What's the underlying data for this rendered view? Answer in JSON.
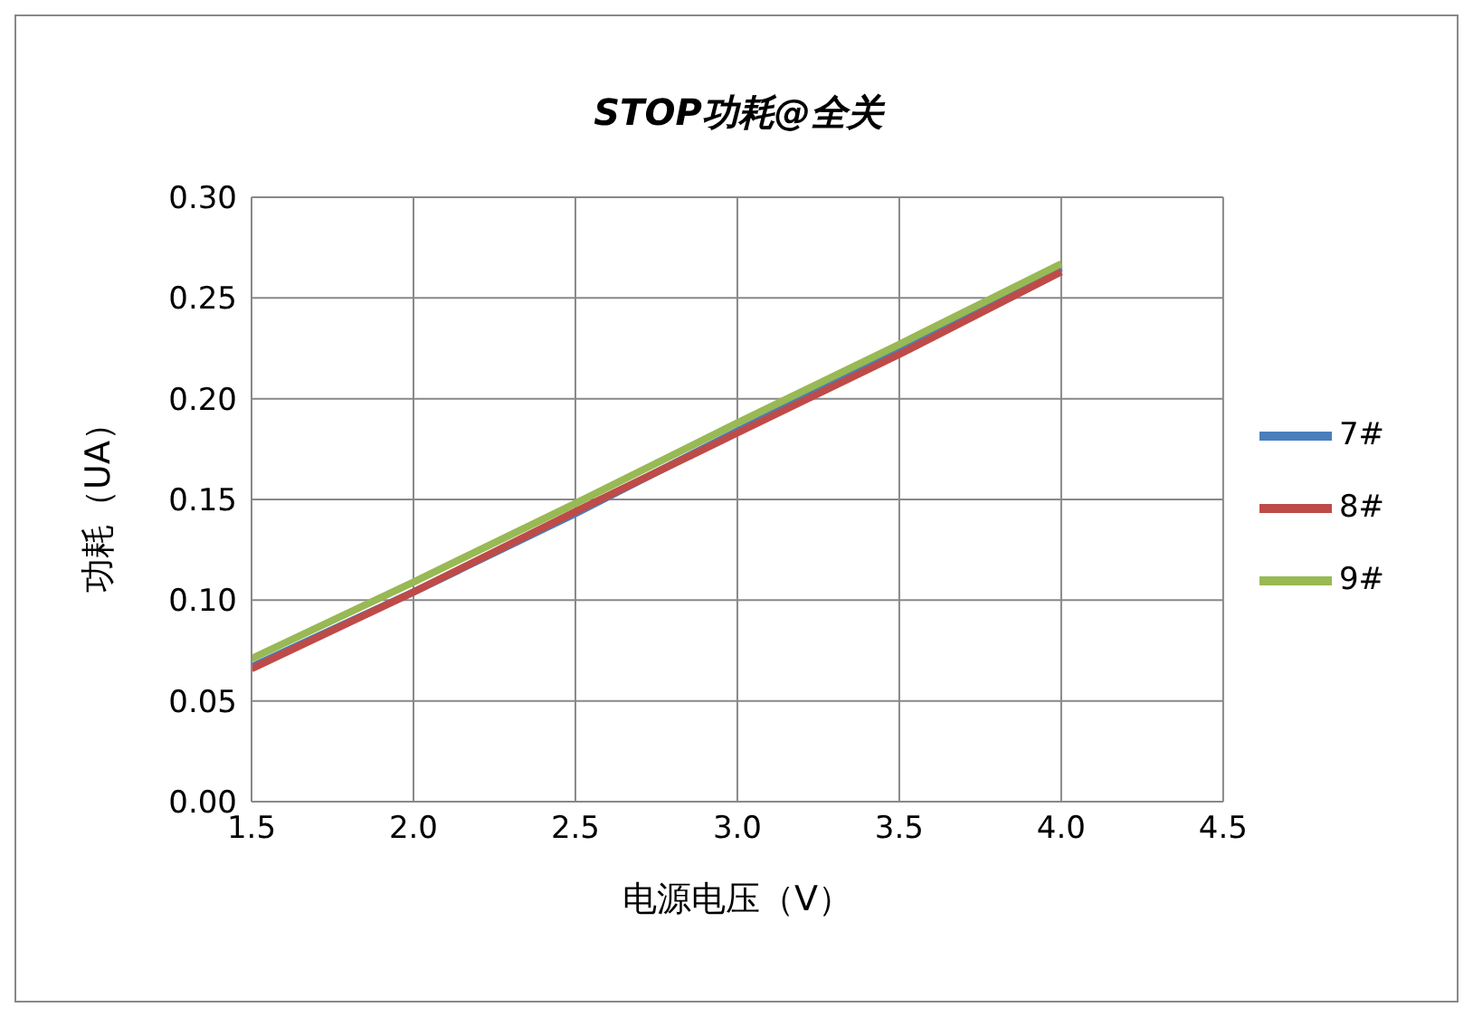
{
  "chart_data": {
    "type": "line",
    "title": "STOP功耗@全关",
    "xlabel": "电源电压（V）",
    "ylabel": "功耗（UA）",
    "xlim": [
      1.5,
      4.5
    ],
    "xticks": [
      {
        "value": 1.5,
        "label": "1.5"
      },
      {
        "value": 2,
        "label": "2.0"
      },
      {
        "value": 2.5,
        "label": "2.5"
      },
      {
        "value": 3,
        "label": "3.0"
      },
      {
        "value": 3.5,
        "label": "3.5"
      },
      {
        "value": 4,
        "label": "4.0"
      },
      {
        "value": 4.5,
        "label": "4.5"
      }
    ],
    "ylim": [
      0,
      0.3
    ],
    "yticks": [
      {
        "value": 0,
        "label": "0.00"
      },
      {
        "value": 0.05,
        "label": "0.05"
      },
      {
        "value": 0.1,
        "label": "0.10"
      },
      {
        "value": 0.15,
        "label": "0.15"
      },
      {
        "value": 0.2,
        "label": "0.20"
      },
      {
        "value": 0.25,
        "label": "0.25"
      },
      {
        "value": 0.3,
        "label": "0.30"
      }
    ],
    "x": [
      1.5,
      2.0,
      2.5,
      3.0,
      3.5,
      4.0
    ],
    "series": [
      {
        "name": "7#",
        "color": "#4a7ebb",
        "values": [
          0.067,
          0.104,
          0.143,
          0.184,
          0.224,
          0.265
        ]
      },
      {
        "name": "8#",
        "color": "#be4b48",
        "values": [
          0.066,
          0.104,
          0.144,
          0.183,
          0.222,
          0.263
        ]
      },
      {
        "name": "9#",
        "color": "#98b954",
        "values": [
          0.071,
          0.109,
          0.148,
          0.188,
          0.227,
          0.267
        ]
      }
    ],
    "grid": true,
    "legend": "right",
    "marker": "none",
    "line_style": "solid"
  }
}
